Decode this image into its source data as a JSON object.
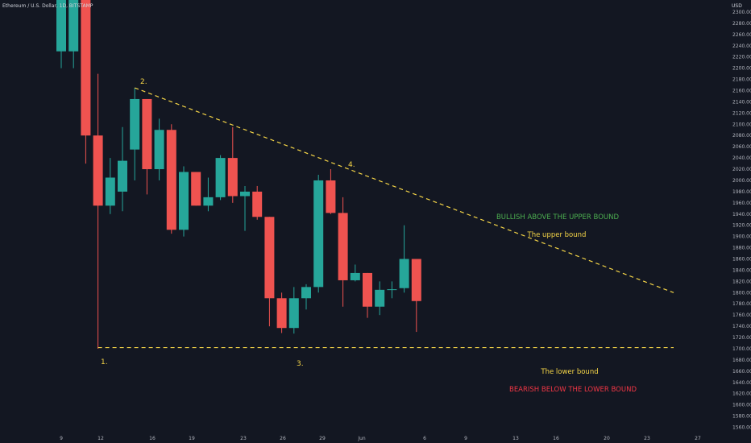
{
  "header": {
    "symbol": "Ethereum / U.S. Dollar, 1D, BITSTAMP",
    "currency": "USD"
  },
  "colors": {
    "background": "#131722",
    "up": "#26a69a",
    "down": "#ef5350",
    "trendline": "#f5d547",
    "axis_text": "#b2b5be",
    "bullish_text": "#4caf50",
    "bearish_text": "#f23645"
  },
  "annotations": {
    "point1": "1.",
    "point2": "2.",
    "point3": "3.",
    "point4": "4.",
    "upper_label": "The upper bound",
    "lower_label": "The lower bound",
    "bullish": "BULLISH ABOVE THE UPPER BOUND",
    "bearish": "BEARISH BELOW THE LOWER BOUND"
  },
  "chart_data": {
    "type": "candlestick",
    "ylabel": "USD",
    "ylim": [
      1555,
      2310
    ],
    "y_ticks": [
      1560,
      1580,
      1600,
      1620,
      1640,
      1660,
      1680,
      1700,
      1720,
      1740,
      1760,
      1780,
      1800,
      1820,
      1840,
      1860,
      1880,
      1900,
      1920,
      1940,
      1960,
      1980,
      2000,
      2020,
      2040,
      2060,
      2080,
      2100,
      2120,
      2140,
      2160,
      2180,
      2200,
      2220,
      2240,
      2260,
      2280,
      2300
    ],
    "x_ticks": [
      "9",
      "12",
      "16",
      "19",
      "23",
      "26",
      "29",
      "Jun",
      "6",
      "9",
      "13",
      "16",
      "20",
      "23",
      "27"
    ],
    "candles": [
      {
        "o": 2230,
        "h": 2400,
        "l": 2200,
        "c": 2400
      },
      {
        "o": 2230,
        "h": 2400,
        "l": 2200,
        "c": 2400
      },
      {
        "o": 2400,
        "h": 2400,
        "l": 2030,
        "c": 2080
      },
      {
        "o": 2080,
        "h": 2190,
        "l": 1700,
        "c": 1955
      },
      {
        "o": 1955,
        "h": 2040,
        "l": 1940,
        "c": 2005
      },
      {
        "o": 1980,
        "h": 2095,
        "l": 1945,
        "c": 2035
      },
      {
        "o": 2055,
        "h": 2165,
        "l": 2000,
        "c": 2145
      },
      {
        "o": 2145,
        "h": 2145,
        "l": 1975,
        "c": 2020
      },
      {
        "o": 2020,
        "h": 2110,
        "l": 2000,
        "c": 2090
      },
      {
        "o": 2090,
        "h": 2100,
        "l": 1905,
        "c": 1912
      },
      {
        "o": 1912,
        "h": 2025,
        "l": 1900,
        "c": 2015
      },
      {
        "o": 2015,
        "h": 2015,
        "l": 1955,
        "c": 1955
      },
      {
        "o": 1955,
        "h": 2005,
        "l": 1945,
        "c": 1970
      },
      {
        "o": 1970,
        "h": 2045,
        "l": 1965,
        "c": 2040
      },
      {
        "o": 2040,
        "h": 2095,
        "l": 1960,
        "c": 1972
      },
      {
        "o": 1972,
        "h": 1990,
        "l": 1910,
        "c": 1980
      },
      {
        "o": 1980,
        "h": 1990,
        "l": 1930,
        "c": 1935
      },
      {
        "o": 1935,
        "h": 1935,
        "l": 1740,
        "c": 1790
      },
      {
        "o": 1790,
        "h": 1800,
        "l": 1728,
        "c": 1737
      },
      {
        "o": 1737,
        "h": 1810,
        "l": 1727,
        "c": 1790
      },
      {
        "o": 1790,
        "h": 1815,
        "l": 1770,
        "c": 1810
      },
      {
        "o": 1810,
        "h": 2010,
        "l": 1800,
        "c": 2000
      },
      {
        "o": 2000,
        "h": 2020,
        "l": 1940,
        "c": 1942
      },
      {
        "o": 1942,
        "h": 1970,
        "l": 1775,
        "c": 1822
      },
      {
        "o": 1822,
        "h": 1850,
        "l": 1820,
        "c": 1835
      },
      {
        "o": 1835,
        "h": 1835,
        "l": 1755,
        "c": 1775
      },
      {
        "o": 1775,
        "h": 1820,
        "l": 1760,
        "c": 1805
      },
      {
        "o": 1805,
        "h": 1820,
        "l": 1790,
        "c": 1806
      },
      {
        "o": 1808,
        "h": 1920,
        "l": 1800,
        "c": 1860
      },
      {
        "o": 1860,
        "h": 1860,
        "l": 1730,
        "c": 1785
      }
    ],
    "trendlines": [
      {
        "name": "upper bound",
        "from": {
          "index": 6,
          "price": 2165
        },
        "to": {
          "index": 50,
          "price": 1800
        }
      },
      {
        "name": "lower bound",
        "from": {
          "index": 3,
          "price": 1702
        },
        "to": {
          "index": 50,
          "price": 1702
        }
      }
    ],
    "points": [
      {
        "label": "1.",
        "index": 3,
        "price": 1700
      },
      {
        "label": "2.",
        "index": 6,
        "price": 2165
      },
      {
        "label": "3.",
        "index": 18,
        "price": 1727
      },
      {
        "label": "4.",
        "index": 21,
        "price": 2010
      }
    ]
  }
}
